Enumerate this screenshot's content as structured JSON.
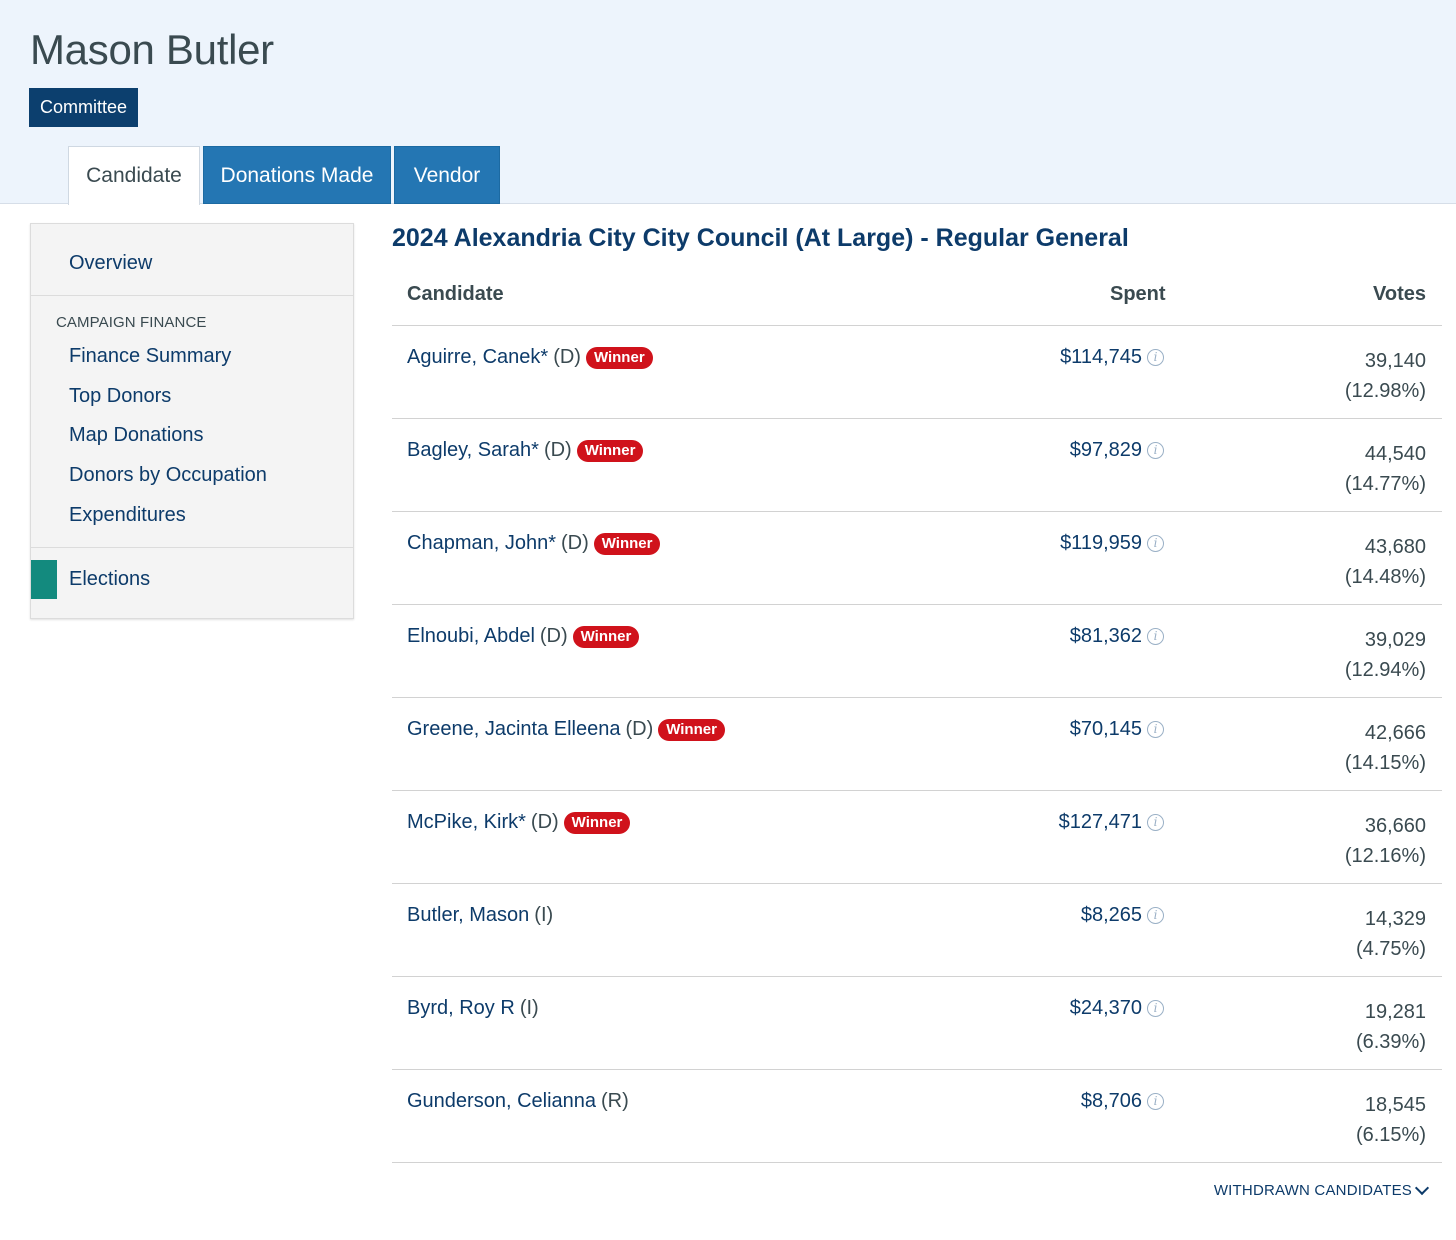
{
  "header": {
    "title": "Mason Butler",
    "badge": "Committee"
  },
  "tabs": [
    {
      "label": "Candidate",
      "active": true
    },
    {
      "label": "Donations Made",
      "active": false
    },
    {
      "label": "Vendor",
      "active": false
    }
  ],
  "sidebar": {
    "overview": "Overview",
    "section_label": "CAMPAIGN FINANCE",
    "items": [
      "Finance Summary",
      "Top Donors",
      "Map Donations",
      "Donors by Occupation",
      "Expenditures"
    ],
    "elections": "Elections"
  },
  "election": {
    "title": "2024 Alexandria City City Council (At Large) - Regular General",
    "columns": {
      "candidate": "Candidate",
      "spent": "Spent",
      "votes": "Votes"
    },
    "rows": [
      {
        "name": "Aguirre, Canek*",
        "party": "(D)",
        "winner": "Winner",
        "spent": "$114,745",
        "votes": "39,140",
        "pct": "(12.98%)"
      },
      {
        "name": "Bagley, Sarah*",
        "party": "(D)",
        "winner": "Winner",
        "spent": "$97,829",
        "votes": "44,540",
        "pct": "(14.77%)"
      },
      {
        "name": "Chapman, John*",
        "party": "(D)",
        "winner": "Winner",
        "spent": "$119,959",
        "votes": "43,680",
        "pct": "(14.48%)"
      },
      {
        "name": "Elnoubi, Abdel",
        "party": "(D)",
        "winner": "Winner",
        "spent": "$81,362",
        "votes": "39,029",
        "pct": "(12.94%)"
      },
      {
        "name": "Greene, Jacinta Elleena",
        "party": "(D)",
        "winner": "Winner",
        "spent": "$70,145",
        "votes": "42,666",
        "pct": "(14.15%)"
      },
      {
        "name": "McPike, Kirk*",
        "party": "(D)",
        "winner": "Winner",
        "spent": "$127,471",
        "votes": "36,660",
        "pct": "(12.16%)"
      },
      {
        "name": "Butler, Mason",
        "party": "(I)",
        "winner": null,
        "spent": "$8,265",
        "votes": "14,329",
        "pct": "(4.75%)"
      },
      {
        "name": "Byrd, Roy R",
        "party": "(I)",
        "winner": null,
        "spent": "$24,370",
        "votes": "19,281",
        "pct": "(6.39%)"
      },
      {
        "name": "Gunderson, Celianna",
        "party": "(R)",
        "winner": null,
        "spent": "$8,706",
        "votes": "18,545",
        "pct": "(6.15%)"
      }
    ],
    "withdrawn_label": "WITHDRAWN CANDIDATES"
  },
  "colors": {
    "header_bg": "#edf4fc",
    "badge_bg": "#0c3f6e",
    "tab_inactive": "#2476b3",
    "link": "#0d3b6a",
    "winner_badge": "#d0121b",
    "active_marker": "#138a7e"
  }
}
